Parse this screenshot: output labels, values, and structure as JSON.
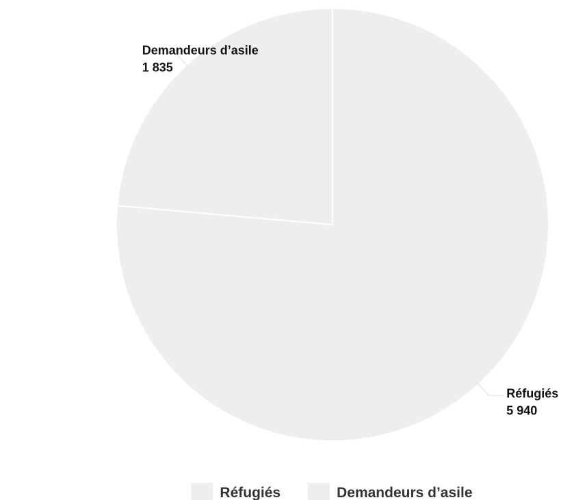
{
  "chart_data": {
    "type": "pie",
    "slices": [
      {
        "name": "Réfugiés",
        "value": 5940,
        "value_label": "5 940",
        "color": "#eeeeee"
      },
      {
        "name": "Demandeurs d’asile",
        "value": 1835,
        "value_label": "1 835",
        "color": "#eeeeee"
      }
    ],
    "slice_border_color": "#ffffff",
    "connector_color": "#dddddd",
    "legend": {
      "placement": "bottom-center",
      "items": [
        "Réfugiés",
        "Demandeurs d’asile"
      ]
    }
  }
}
